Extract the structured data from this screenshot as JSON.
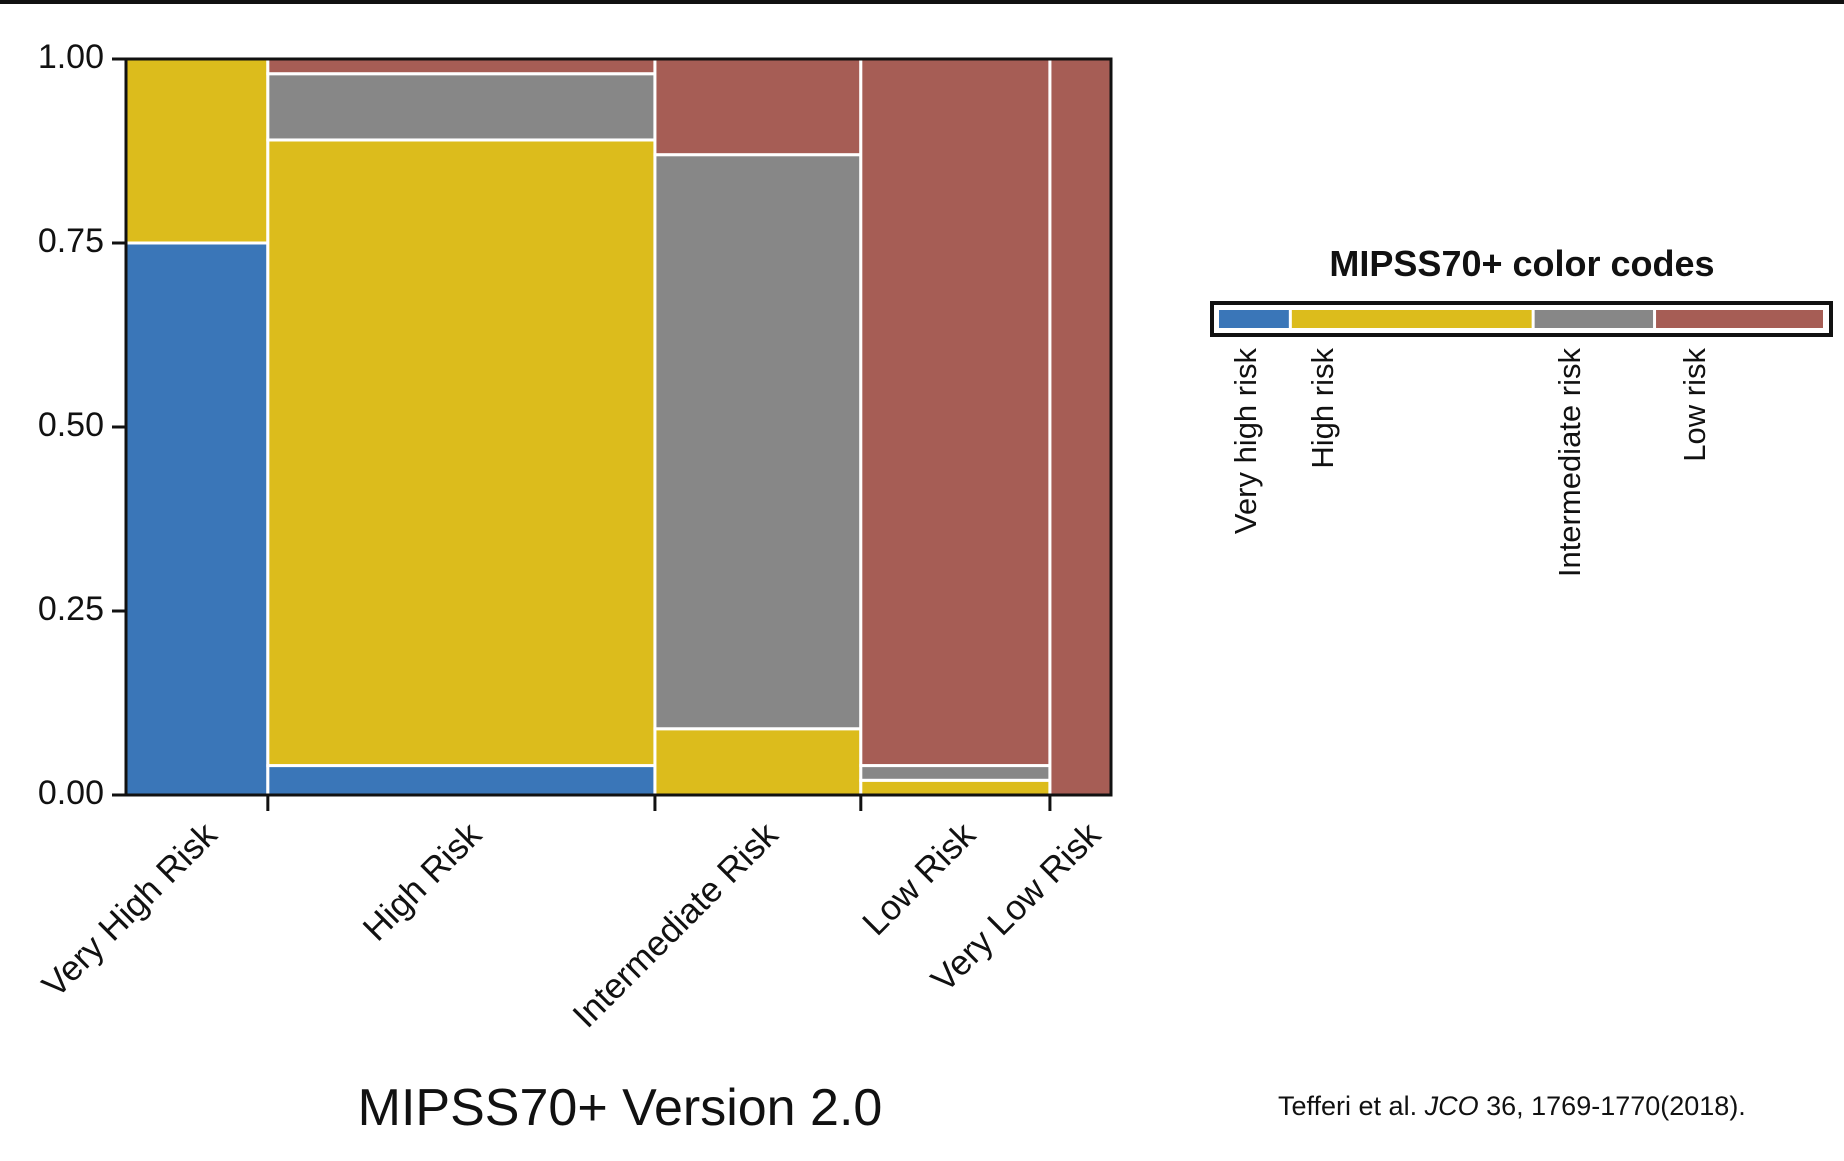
{
  "chart_data": {
    "type": "mosaic",
    "categories": [
      "Very High Risk",
      "High Risk",
      "Intermediate Risk",
      "Low Risk",
      "Very Low Risk"
    ],
    "widths": [
      0.144,
      0.393,
      0.209,
      0.192,
      0.062
    ],
    "series": [
      {
        "name": "Very high risk",
        "color": "#3a76b8",
        "values": [
          0.75,
          0.04,
          0,
          0,
          0
        ]
      },
      {
        "name": "High risk",
        "color": "#dcbc1c",
        "values": [
          0.25,
          0.85,
          0.09,
          0.02,
          0
        ]
      },
      {
        "name": "Intermediate risk",
        "color": "#878787",
        "values": [
          0,
          0.09,
          0.78,
          0.02,
          0
        ]
      },
      {
        "name": "Low risk",
        "color": "#a65d55",
        "values": [
          0,
          0.02,
          0.13,
          0.96,
          1
        ]
      }
    ],
    "ylim": [
      0,
      1
    ],
    "yticks": [
      {
        "value": 0,
        "label": "0.00"
      },
      {
        "value": 0.25,
        "label": "0.25"
      },
      {
        "value": 0.5,
        "label": "0.50"
      },
      {
        "value": 0.75,
        "label": "0.75"
      },
      {
        "value": 1,
        "label": "1.00"
      }
    ],
    "xlabel": "MIPSS70+ Version 2.0",
    "legend_title": "MIPSS70+ color codes",
    "citation": {
      "authors": "Tefferi et al.",
      "journal": "JCO",
      "reference": "36, 1769-1770(2018)."
    }
  }
}
